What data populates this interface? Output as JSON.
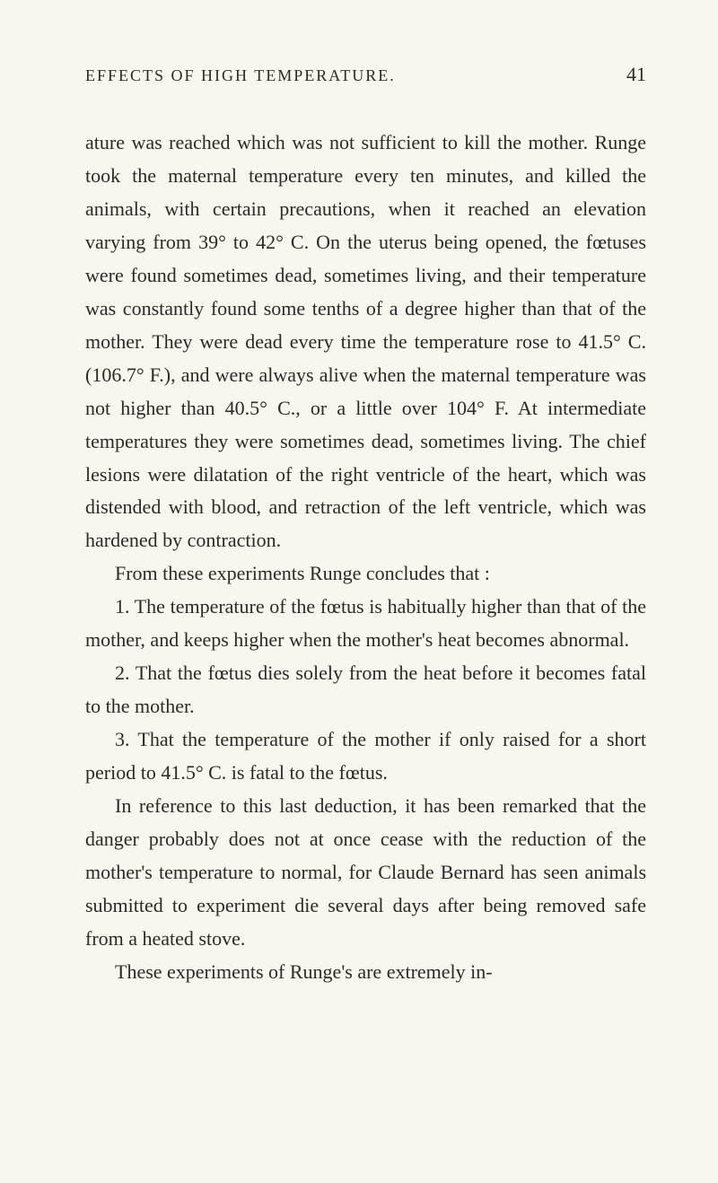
{
  "header": {
    "title": "EFFECTS OF HIGH TEMPERATURE.",
    "page_number": "41"
  },
  "paragraphs": {
    "p1": "ature was reached which was not sufficient to kill the mother. Runge took the maternal temperature every ten minutes, and killed the animals, with certain precautions, when it reached an elevation varying from 39° to 42° C. On the uterus being opened, the fœtuses were found sometimes dead, sometimes living, and their temperature was con­stantly found some tenths of a degree higher than that of the mother. They were dead every time the temperature rose to 41.5° C. (106.7° F.), and were always alive when the maternal temperature was not higher than 40.5° C., or a little over 104° F. At intermediate temperatures they were sometimes dead, sometimes living. The chief lesions were dilatation of the right ventricle of the heart, which was distended with blood, and retraction of the left ventricle, which was hardened by contraction.",
    "p2": "From these experiments Runge concludes that :",
    "p3": "1. The temperature of the fœtus is habitually higher than that of the mother, and keeps higher when the mother's heat becomes abnormal.",
    "p4": "2. That the fœtus dies solely from the heat before it becomes fatal to the mother.",
    "p5": "3. That the temperature of the mother if only raised for a short period to 41.5° C. is fatal to the fœtus.",
    "p6": "In reference to this last deduction, it has been re­marked that the danger probably does not at once cease with the reduction of the mother's temperature to normal, for Claude Bernard has seen animals sub­mitted to experiment die several days after being removed safe from a heated stove.",
    "p7": "These experiments of Runge's are extremely in-"
  }
}
